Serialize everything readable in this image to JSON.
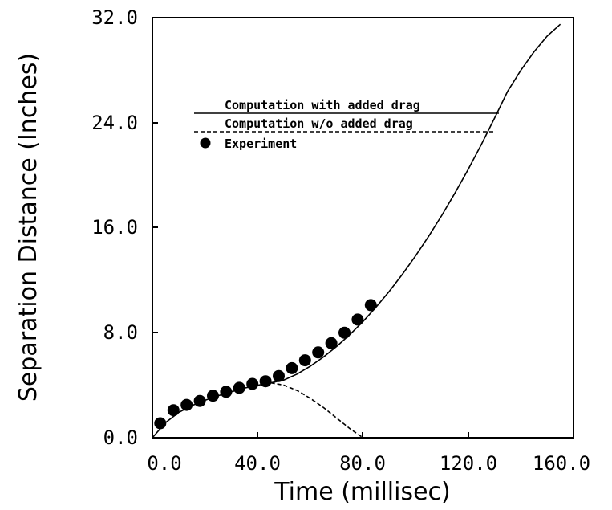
{
  "chart_data": {
    "type": "line",
    "xlabel": "Time (millisec)",
    "ylabel": "Separation Distance (Inches)",
    "xlim": [
      0,
      160
    ],
    "ylim": [
      0,
      32
    ],
    "x_ticks": [
      "0.0",
      "40.0",
      "80.0",
      "120.0",
      "160.0"
    ],
    "y_ticks": [
      "0.0",
      "8.0",
      "16.0",
      "24.0",
      "32.0"
    ],
    "grid": false,
    "legend_position": "top-left",
    "series": [
      {
        "name": "Computation with added drag",
        "style": "solid",
        "x": [
          0,
          5,
          10,
          15,
          20,
          25,
          30,
          35,
          40,
          45,
          50,
          55,
          60,
          65,
          70,
          75,
          80,
          85,
          90,
          95,
          100,
          105,
          110,
          115,
          120,
          125,
          130,
          135,
          140,
          145,
          150,
          155
        ],
        "y": [
          0.0,
          1.15,
          1.93,
          2.45,
          2.85,
          3.2,
          3.5,
          3.78,
          4.0,
          4.18,
          4.4,
          4.85,
          5.45,
          6.15,
          6.95,
          7.85,
          8.85,
          9.95,
          11.15,
          12.45,
          13.85,
          15.35,
          16.95,
          18.65,
          20.45,
          22.35,
          24.35,
          26.4,
          28.0,
          29.4,
          30.6,
          31.5
        ]
      },
      {
        "name": "Computation w/o added drag",
        "style": "dashed",
        "x": [
          45,
          50,
          55,
          60,
          65,
          70,
          75,
          80
        ],
        "y": [
          4.18,
          4.0,
          3.6,
          3.0,
          2.3,
          1.5,
          0.7,
          0.0
        ]
      },
      {
        "name": "Experiment",
        "style": "points",
        "x": [
          3,
          8,
          13,
          18,
          23,
          28,
          33,
          38,
          43,
          48,
          53,
          58,
          63,
          68,
          73,
          78,
          83
        ],
        "y": [
          1.1,
          2.1,
          2.5,
          2.8,
          3.2,
          3.5,
          3.8,
          4.1,
          4.3,
          4.7,
          5.3,
          5.9,
          6.5,
          7.2,
          8.0,
          9.0,
          10.1
        ]
      }
    ]
  },
  "colors": {
    "ink": "#000000",
    "background": "#ffffff"
  }
}
